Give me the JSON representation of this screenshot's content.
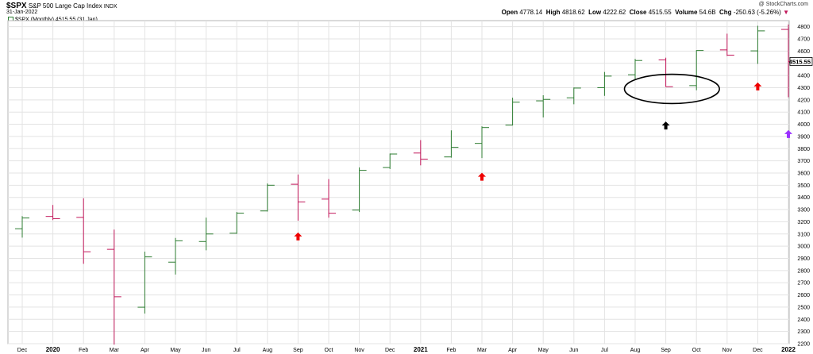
{
  "header": {
    "symbol": "$SPX",
    "name": "S&P 500 Large Cap Index",
    "exchange": "INDX",
    "date": "31-Jan-2022",
    "legend": "$SPX (Monthly) 4515.55 (31 Jan)",
    "copyright": "@ StockCharts.com",
    "ohlc": {
      "open_label": "Open",
      "open": "4778.14",
      "high_label": "High",
      "high": "4818.62",
      "low_label": "Low",
      "low": "4222.62",
      "close_label": "Close",
      "close": "4515.55",
      "volume_label": "Volume",
      "volume": "54.6B",
      "chg_label": "Chg",
      "chg": "-250.63 (-5.26%)",
      "chg_arrow": "▼"
    }
  },
  "colors": {
    "up": "#2e7d32",
    "down": "#c2185b",
    "grid": "#e3e3e3",
    "arrow_red": "#ee0000",
    "arrow_black": "#000000",
    "arrow_purple": "#9b30ff"
  },
  "chart_data": {
    "type": "ohlc",
    "ylim": [
      2200,
      4850
    ],
    "grid": true,
    "y_ticks": [
      2200,
      2300,
      2400,
      2500,
      2600,
      2700,
      2800,
      2900,
      3000,
      3100,
      3200,
      3300,
      3400,
      3500,
      3600,
      3700,
      3800,
      3900,
      4000,
      4100,
      4200,
      4300,
      4400,
      4500,
      4600,
      4700,
      4800
    ],
    "last_price_label": "4515.55",
    "x_labels": [
      "Dec",
      "2020",
      "Feb",
      "Mar",
      "Apr",
      "May",
      "Jun",
      "Jul",
      "Aug",
      "Sep",
      "Oct",
      "Nov",
      "Dec",
      "2021",
      "Feb",
      "Mar",
      "Apr",
      "May",
      "Jun",
      "Jul",
      "Aug",
      "Sep",
      "Oct",
      "Nov",
      "Dec",
      "2022"
    ],
    "x_labels_bold": [
      "2020",
      "2021",
      "2022"
    ],
    "bars": [
      {
        "month": "Dec 2019",
        "o": 3143,
        "h": 3247,
        "l": 3070,
        "c": 3231
      },
      {
        "month": "Jan 2020",
        "o": 3244,
        "h": 3338,
        "l": 3214,
        "c": 3226
      },
      {
        "month": "Feb 2020",
        "o": 3236,
        "h": 3393,
        "l": 2855,
        "c": 2954
      },
      {
        "month": "Mar 2020",
        "o": 2974,
        "h": 3136,
        "l": 2192,
        "c": 2585
      },
      {
        "month": "Apr 2020",
        "o": 2499,
        "h": 2955,
        "l": 2447,
        "c": 2912
      },
      {
        "month": "May 2020",
        "o": 2869,
        "h": 3068,
        "l": 2767,
        "c": 3044
      },
      {
        "month": "Jun 2020",
        "o": 3038,
        "h": 3234,
        "l": 2966,
        "c": 3100
      },
      {
        "month": "Jul 2020",
        "o": 3106,
        "h": 3280,
        "l": 3101,
        "c": 3271
      },
      {
        "month": "Aug 2020",
        "o": 3289,
        "h": 3514,
        "l": 3284,
        "c": 3500
      },
      {
        "month": "Sep 2020",
        "o": 3508,
        "h": 3588,
        "l": 3209,
        "c": 3363
      },
      {
        "month": "Oct 2020",
        "o": 3386,
        "h": 3550,
        "l": 3234,
        "c": 3270
      },
      {
        "month": "Nov 2020",
        "o": 3296,
        "h": 3646,
        "l": 3280,
        "c": 3622
      },
      {
        "month": "Dec 2020",
        "o": 3645,
        "h": 3760,
        "l": 3633,
        "c": 3756
      },
      {
        "month": "Jan 2021",
        "o": 3764,
        "h": 3870,
        "l": 3663,
        "c": 3714
      },
      {
        "month": "Feb 2021",
        "o": 3732,
        "h": 3950,
        "l": 3726,
        "c": 3811
      },
      {
        "month": "Mar 2021",
        "o": 3843,
        "h": 3983,
        "l": 3723,
        "c": 3973
      },
      {
        "month": "Apr 2021",
        "o": 3993,
        "h": 4218,
        "l": 3990,
        "c": 4181
      },
      {
        "month": "May 2021",
        "o": 4192,
        "h": 4238,
        "l": 4056,
        "c": 4204
      },
      {
        "month": "Jun 2021",
        "o": 4217,
        "h": 4302,
        "l": 4164,
        "c": 4297
      },
      {
        "month": "Jul 2021",
        "o": 4300,
        "h": 4429,
        "l": 4233,
        "c": 4395
      },
      {
        "month": "Aug 2021",
        "o": 4406,
        "h": 4537,
        "l": 4367,
        "c": 4523
      },
      {
        "month": "Sep 2021",
        "o": 4528,
        "h": 4546,
        "l": 4306,
        "c": 4308
      },
      {
        "month": "Oct 2021",
        "o": 4317,
        "h": 4608,
        "l": 4279,
        "c": 4605
      },
      {
        "month": "Nov 2021",
        "o": 4610,
        "h": 4743,
        "l": 4560,
        "c": 4567
      },
      {
        "month": "Dec 2021",
        "o": 4602,
        "h": 4808,
        "l": 4495,
        "c": 4766
      },
      {
        "month": "Jan 2022",
        "o": 4778,
        "h": 4818,
        "l": 4222,
        "c": 4515
      }
    ],
    "annotations": [
      {
        "type": "arrow-up",
        "color": "arrow_red",
        "bar": 9,
        "y": 3080
      },
      {
        "type": "arrow-up",
        "color": "arrow_red",
        "bar": 15,
        "y": 3570
      },
      {
        "type": "arrow-up",
        "color": "arrow_black",
        "bar": 21,
        "y": 3990
      },
      {
        "type": "arrow-up",
        "color": "arrow_red",
        "bar": 24,
        "y": 4310
      },
      {
        "type": "arrow-up",
        "color": "arrow_purple",
        "bar": 25,
        "y": 3920
      },
      {
        "type": "ellipse",
        "bar_center": 21.2,
        "y": 4290,
        "bar_width": 3.1,
        "y_height": 240
      }
    ]
  }
}
